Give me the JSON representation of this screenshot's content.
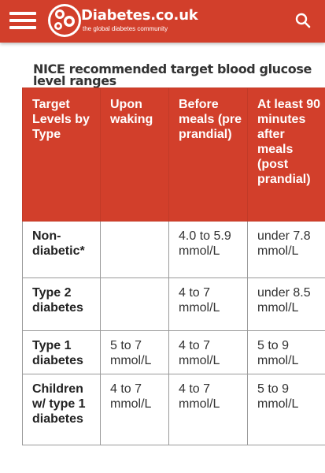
{
  "header": {
    "site_name": "Diabetes.co.uk",
    "tagline": "the global diabetes community",
    "brand_color": "#d23f2b",
    "icons": [
      "hamburger-menu-icon",
      "logo-icon",
      "search-icon"
    ]
  },
  "article": {
    "heading": "NICE recommended target blood glucose level ranges"
  },
  "table": {
    "headers": [
      "Target Levels by Type",
      "Upon waking",
      "Before meals (pre prandial)",
      "At least 90 minutes after meals (post prandial)"
    ],
    "rows": [
      [
        "Non-diabetic*",
        "",
        "4.0 to 5.9 mmol/L",
        "under 7.8 mmol/L"
      ],
      [
        "Type 2 diabetes",
        "",
        "4 to 7 mmol/L",
        "under 8.5 mmol/L"
      ],
      [
        "Type 1 diabetes",
        "5 to 7 mmol/L",
        "4 to 7 mmol/L",
        "5 to 9 mmol/L"
      ],
      [
        "Children w/ type 1 diabetes",
        "4 to 7 mmol/L",
        "4 to 7 mmol/L",
        "5 to 9 mmol/L"
      ]
    ]
  }
}
